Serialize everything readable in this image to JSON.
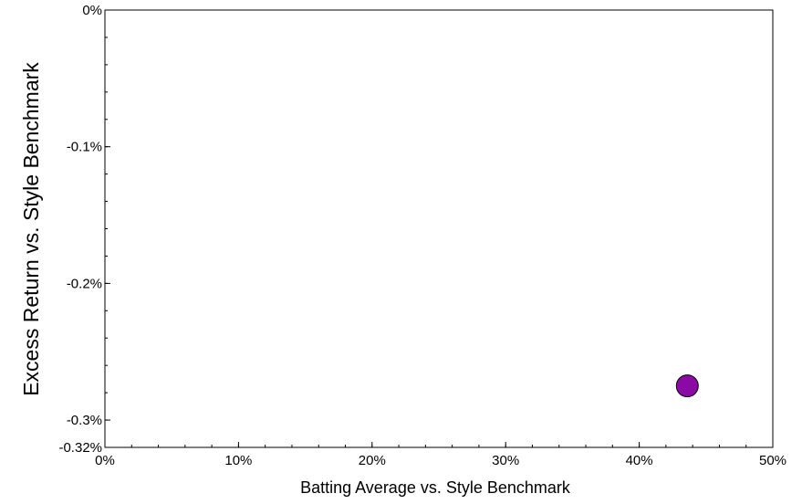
{
  "chart_data": {
    "type": "scatter",
    "xlabel": "Batting Average vs. Style Benchmark",
    "ylabel": "Excess Return vs. Style Benchmark",
    "xlim": [
      0,
      50
    ],
    "ylim": [
      -0.32,
      0
    ],
    "x_ticks": [
      0,
      10,
      20,
      30,
      40,
      50
    ],
    "x_tick_labels": [
      "0%",
      "10%",
      "20%",
      "30%",
      "40%",
      "50%"
    ],
    "y_ticks": [
      0,
      -0.1,
      -0.2,
      -0.3,
      -0.32
    ],
    "y_tick_labels": [
      "0%",
      "-0.1%",
      "-0.2%",
      "-0.3%",
      "-0.32%"
    ],
    "x_minor_step": 2,
    "y_minor_step": 0.02,
    "grid": false,
    "series": [
      {
        "points": [
          {
            "x": 43.6,
            "y": -0.275
          }
        ],
        "color": "#8b0aa5",
        "edge_color": "#000000"
      }
    ]
  }
}
